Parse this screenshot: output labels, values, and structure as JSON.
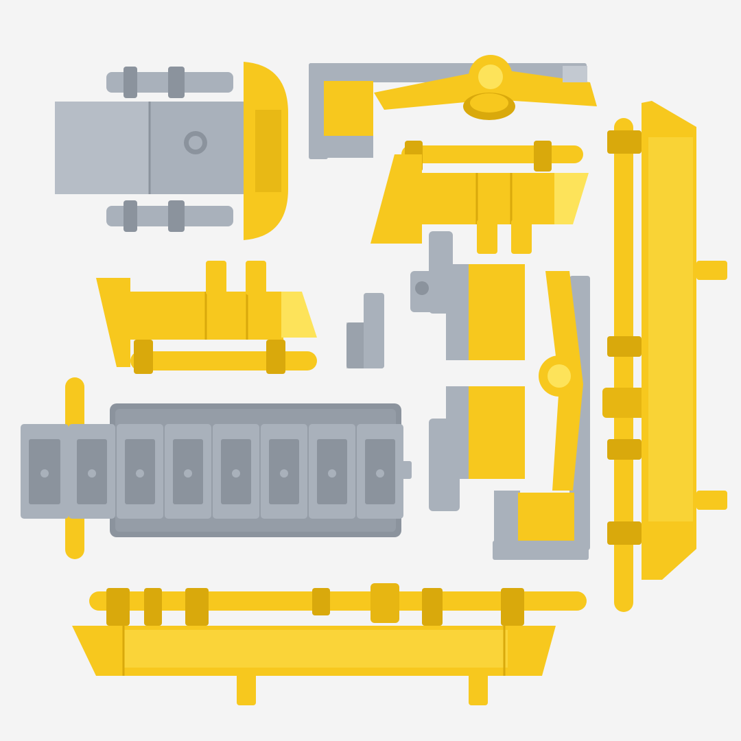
{
  "colors": {
    "background": "#f4f4f4",
    "yellow": "#f7c81e",
    "yellow_light": "#fde35a",
    "yellow_dark": "#d9a90c",
    "grey": "#a9b1bb",
    "grey_light": "#c3c9d1",
    "grey_dark": "#8b939d"
  },
  "groups": [
    {
      "name": "grey-block-with-pins",
      "colors": [
        "grey",
        "yellow"
      ]
    },
    {
      "name": "lever-arm-assembly",
      "colors": [
        "grey",
        "yellow"
      ]
    },
    {
      "name": "upper-yellow-rail-section",
      "colors": [
        "yellow"
      ]
    },
    {
      "name": "tall-yellow-vertical-rail",
      "colors": [
        "yellow"
      ]
    },
    {
      "name": "left-yellow-rail-section",
      "colors": [
        "yellow"
      ]
    },
    {
      "name": "small-grey-bracket",
      "colors": [
        "grey"
      ]
    },
    {
      "name": "clip-grey-yellow-panel",
      "colors": [
        "grey",
        "yellow"
      ]
    },
    {
      "name": "grey-plate-with-clips",
      "colors": [
        "grey",
        "yellow"
      ]
    },
    {
      "name": "grey-yellow-panel-with-arm",
      "colors": [
        "grey",
        "yellow"
      ]
    },
    {
      "name": "long-bottom-yellow-rail",
      "colors": [
        "yellow"
      ]
    }
  ],
  "clip_count": 8
}
